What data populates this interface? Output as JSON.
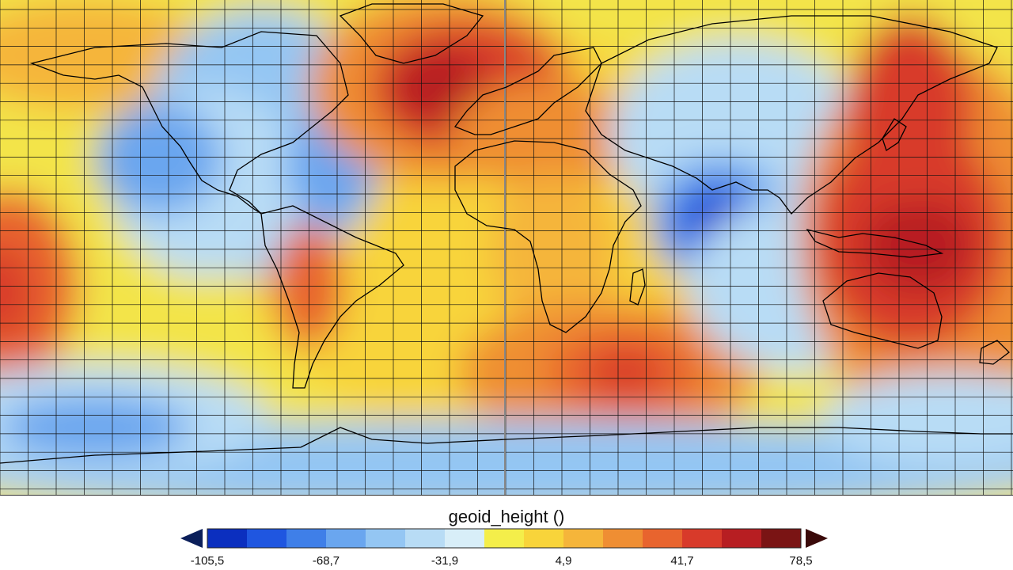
{
  "map": {
    "variable": "geoid_height",
    "projection": "equirectangular",
    "gridlines": true,
    "continent_outlines": true
  },
  "colorbar": {
    "title": "geoid_height ()",
    "ticks": [
      "-105,5",
      "-68,7",
      "-31,9",
      "4,9",
      "41,7",
      "78,5"
    ],
    "colors": [
      "#0b2fbf",
      "#1f56e0",
      "#3f7fe8",
      "#6aa6ef",
      "#94c6f3",
      "#b8dcf5",
      "#d8eef8",
      "#f4ee4a",
      "#f8d43a",
      "#f5b53a",
      "#ef8e33",
      "#e8642e",
      "#d83a2a",
      "#b71e22",
      "#7a1414"
    ],
    "extend_min_color": "#0b1f5a",
    "extend_max_color": "#3a0a0a"
  },
  "colors": {
    "grid": "#111111",
    "coastline": "#000000",
    "background": "#ffffff"
  }
}
